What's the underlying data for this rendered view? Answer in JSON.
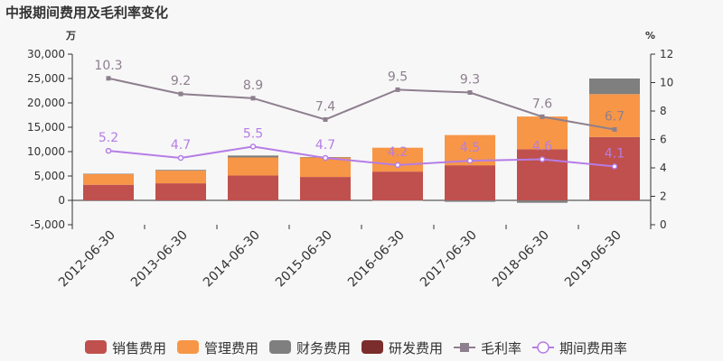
{
  "chart_data": {
    "type": "bar",
    "title": "中报期间费用及毛利率变化",
    "left_unit": "万",
    "right_unit": "%",
    "categories": [
      "2012-06-30",
      "2013-06-30",
      "2014-06-30",
      "2015-06-30",
      "2016-06-30",
      "2017-06-30",
      "2018-06-30",
      "2019-06-30"
    ],
    "left_axis": {
      "min": -5000,
      "max": 30000,
      "ticks": [
        -5000,
        0,
        5000,
        10000,
        15000,
        20000,
        25000,
        30000
      ],
      "tick_labels": [
        "-5,000",
        "0",
        "5,000",
        "10,000",
        "15,000",
        "20,000",
        "25,000",
        "30,000"
      ]
    },
    "right_axis": {
      "min": 0,
      "max": 12,
      "ticks": [
        0,
        2,
        4,
        6,
        8,
        10,
        12
      ]
    },
    "bar_series": [
      {
        "name": "销售费用",
        "color": "#c0504d",
        "values": [
          3200,
          3500,
          5100,
          4800,
          5900,
          7200,
          10500,
          13000
        ]
      },
      {
        "name": "管理费用",
        "color": "#f79646",
        "values": [
          2200,
          2600,
          3700,
          4000,
          4900,
          6200,
          6700,
          8800
        ]
      },
      {
        "name": "财务费用",
        "color": "#7f7f7f",
        "values": [
          60,
          150,
          400,
          80,
          -50,
          -300,
          -500,
          3200
        ]
      },
      {
        "name": "研发费用",
        "color": "#7b2c2c",
        "values": [
          0,
          0,
          0,
          0,
          0,
          0,
          0,
          0
        ]
      }
    ],
    "line_series": [
      {
        "name": "毛利率",
        "color": "#8e7f8e",
        "marker": "square",
        "values": [
          10.3,
          9.2,
          8.9,
          7.4,
          9.5,
          9.3,
          7.6,
          6.7
        ],
        "labels": [
          "10.3",
          "9.2",
          "8.9",
          "7.4",
          "9.5",
          "9.3",
          "7.6",
          "6.7"
        ]
      },
      {
        "name": "期间费用率",
        "color": "#b57de6",
        "marker": "circle",
        "values": [
          5.2,
          4.7,
          5.5,
          4.7,
          4.2,
          4.5,
          4.6,
          4.1
        ],
        "labels": [
          "5.2",
          "4.7",
          "5.5",
          "4.7",
          "4.2",
          "4.5",
          "4.6",
          "4.1"
        ]
      }
    ],
    "legend": "bottom",
    "grid": false
  }
}
